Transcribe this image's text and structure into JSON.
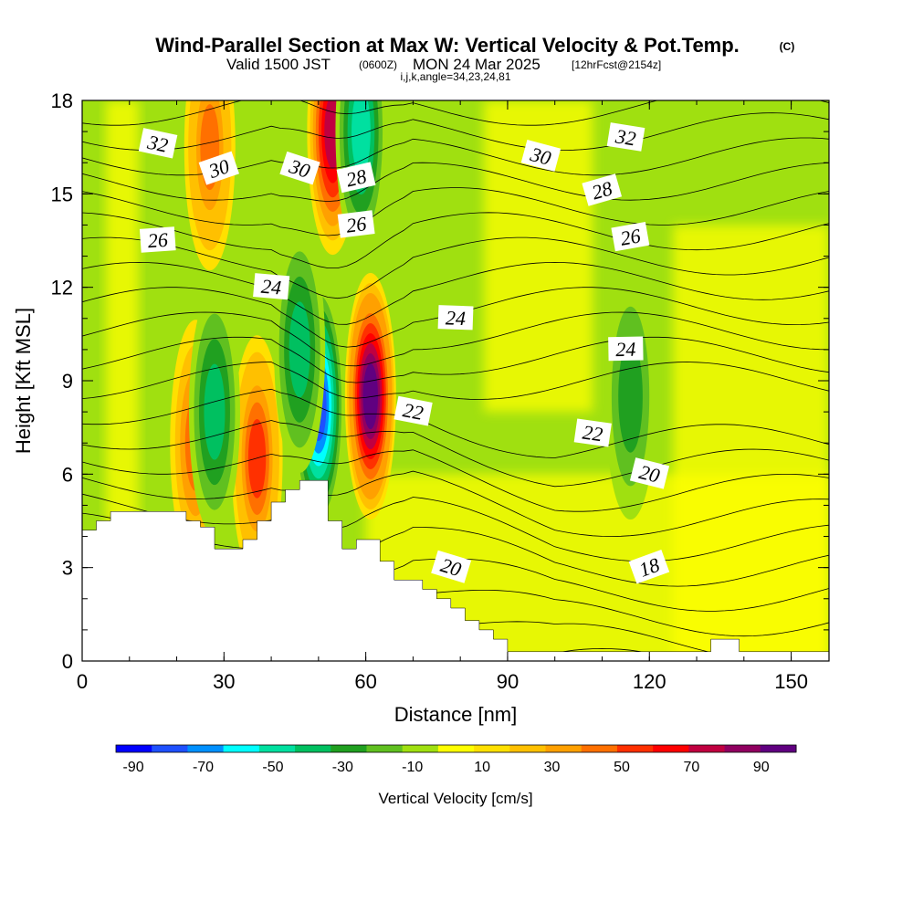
{
  "title": {
    "main": "Wind-Parallel Section at Max W: Vertical Velocity & Pot.Temp.",
    "copyright": "(C)",
    "valid_prefix": "Valid 1500 JST",
    "valid_utc": "(0600Z)",
    "valid_date": "MON 24 Mar 2025",
    "forecast": "[12hrFcst@2154z]",
    "indices": "i,j,k,angle=34,23,24,81"
  },
  "chart_data": {
    "type": "heatmap",
    "xlabel": "Distance [nm]",
    "ylabel": "Height [Kft MSL]",
    "xlim": [
      0,
      158
    ],
    "ylim": [
      0,
      18
    ],
    "x_ticks": [
      "0",
      "30",
      "60",
      "90",
      "120",
      "150"
    ],
    "x_tick_values": [
      0,
      30,
      60,
      90,
      120,
      150
    ],
    "y_ticks": [
      "0",
      "3",
      "6",
      "9",
      "12",
      "15",
      "18"
    ],
    "y_tick_values": [
      0,
      3,
      6,
      9,
      12,
      15,
      18
    ],
    "colorbar": {
      "label": "Vertical Velocity [cm/s]",
      "tick_labels": [
        "-90",
        "-70",
        "-50",
        "-30",
        "-10",
        "10",
        "30",
        "50",
        "70",
        "90"
      ],
      "tick_values": [
        -90,
        -70,
        -50,
        -30,
        -10,
        10,
        30,
        50,
        70,
        90
      ],
      "range": [
        -95,
        100
      ],
      "colors": [
        "#0000ff",
        "#1e50ff",
        "#0090ff",
        "#00ffff",
        "#00e0a0",
        "#00c060",
        "#20a020",
        "#60c020",
        "#a0e010",
        "#ffff00",
        "#ffe000",
        "#ffc000",
        "#ffa000",
        "#ff7000",
        "#ff3000",
        "#ff0000",
        "#c00040",
        "#900060",
        "#600080"
      ]
    },
    "terrain_height_kft": [
      {
        "x": 0,
        "y": 4.2
      },
      {
        "x": 3,
        "y": 4.5
      },
      {
        "x": 6,
        "y": 4.8
      },
      {
        "x": 22,
        "y": 4.5
      },
      {
        "x": 25,
        "y": 4.3
      },
      {
        "x": 28,
        "y": 3.6
      },
      {
        "x": 34,
        "y": 3.9
      },
      {
        "x": 37,
        "y": 4.5
      },
      {
        "x": 40,
        "y": 5.1
      },
      {
        "x": 43,
        "y": 5.5
      },
      {
        "x": 46,
        "y": 5.8
      },
      {
        "x": 52,
        "y": 4.5
      },
      {
        "x": 55,
        "y": 3.6
      },
      {
        "x": 58,
        "y": 3.9
      },
      {
        "x": 63,
        "y": 3.2
      },
      {
        "x": 66,
        "y": 2.6
      },
      {
        "x": 72,
        "y": 2.3
      },
      {
        "x": 75,
        "y": 2.0
      },
      {
        "x": 78,
        "y": 1.7
      },
      {
        "x": 81,
        "y": 1.3
      },
      {
        "x": 84,
        "y": 1.0
      },
      {
        "x": 87,
        "y": 0.7
      },
      {
        "x": 90,
        "y": 0.3
      },
      {
        "x": 133,
        "y": 0.7
      },
      {
        "x": 139,
        "y": 0.3
      },
      {
        "x": 158,
        "y": 0.3
      }
    ],
    "w_features_cm_s": [
      {
        "x": 61,
        "y": 8.5,
        "w": 95
      },
      {
        "x": 50,
        "y": 8.2,
        "w": -80
      },
      {
        "x": 53,
        "y": 17.0,
        "w": 70
      },
      {
        "x": 59,
        "y": 17.0,
        "w": -50
      },
      {
        "x": 24,
        "y": 7.0,
        "w": 40
      },
      {
        "x": 37,
        "y": 6.5,
        "w": 55
      },
      {
        "x": 28,
        "y": 8.0,
        "w": -35
      },
      {
        "x": 116,
        "y": 8.5,
        "w": -30
      },
      {
        "x": 27,
        "y": 16.5,
        "w": 45
      },
      {
        "x": 46,
        "y": 10.0,
        "w": -40
      }
    ],
    "theta_contours": [
      {
        "label": "18",
        "label_pos": [
          120,
          3
        ]
      },
      {
        "label": "20",
        "label_pos": [
          78,
          3
        ]
      },
      {
        "label": "20",
        "label_pos": [
          120,
          6
        ]
      },
      {
        "label": "22",
        "label_pos": [
          70,
          8
        ]
      },
      {
        "label": "22",
        "label_pos": [
          108,
          7.3
        ]
      },
      {
        "label": "24",
        "label_pos": [
          40,
          12
        ]
      },
      {
        "label": "24",
        "label_pos": [
          79,
          11
        ]
      },
      {
        "label": "24",
        "label_pos": [
          115,
          10
        ]
      },
      {
        "label": "26",
        "label_pos": [
          16,
          13.5
        ]
      },
      {
        "label": "26",
        "label_pos": [
          58,
          14
        ]
      },
      {
        "label": "26",
        "label_pos": [
          116,
          13.6
        ]
      },
      {
        "label": "28",
        "label_pos": [
          58,
          15.5
        ]
      },
      {
        "label": "28",
        "label_pos": [
          110,
          15.1
        ]
      },
      {
        "label": "30",
        "label_pos": [
          29,
          15.8
        ]
      },
      {
        "label": "30",
        "label_pos": [
          46,
          15.8
        ]
      },
      {
        "label": "30",
        "label_pos": [
          97,
          16.2
        ]
      },
      {
        "label": "32",
        "label_pos": [
          16,
          16.6
        ]
      },
      {
        "label": "32",
        "label_pos": [
          115,
          16.8
        ]
      }
    ]
  }
}
